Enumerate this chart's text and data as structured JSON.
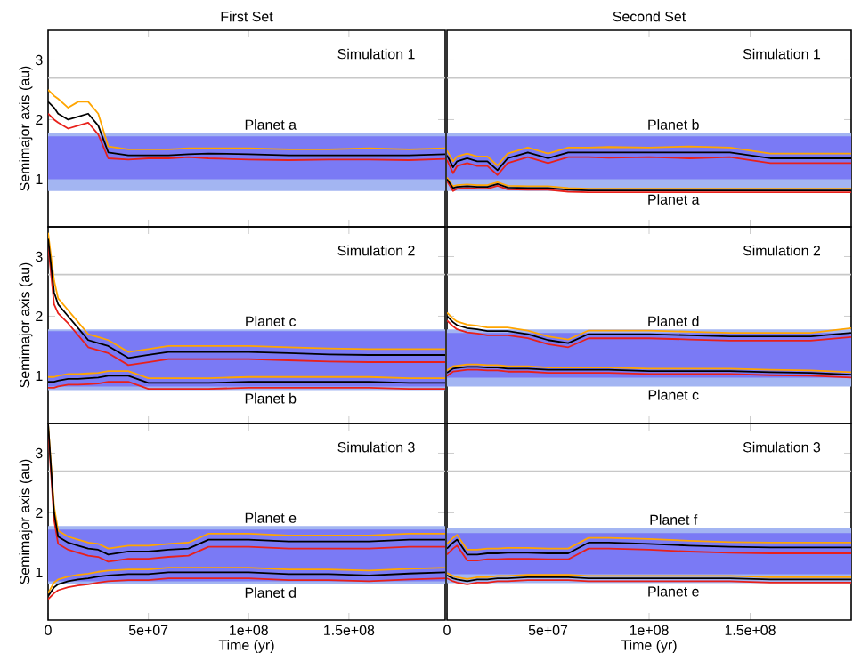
{
  "chart_data": [
    {
      "type": "line",
      "title": "First Set",
      "ylabel": "Semimajor axis (au)",
      "tick_labels": "y",
      "xlim": [
        0,
        198000000
      ],
      "ylim": [
        0.2,
        3.5
      ],
      "xticks": [
        {
          "value": 50000000,
          "label": null
        },
        {
          "value": 100000000,
          "label": null
        },
        {
          "value": 150000000,
          "label": null
        }
      ],
      "yticks": [
        1,
        2,
        3
      ],
      "bands": [
        {
          "axis": "y",
          "from": 0.8,
          "to": 1.78,
          "color": "#a3b5f2"
        },
        {
          "axis": "y",
          "from": 1.0,
          "to": 1.72,
          "color": "#7a7af5"
        }
      ],
      "ref_lines": [
        {
          "axis": "y",
          "value": 2.7,
          "color": "#c8c8c8"
        }
      ],
      "annotations": [
        "Simulation 1",
        "Planet a"
      ],
      "x": [
        0,
        3000000,
        5000000,
        10000000,
        15000000,
        20000000,
        25000000,
        30000000,
        40000000,
        50000000,
        60000000,
        70000000,
        80000000,
        100000000,
        120000000,
        140000000,
        160000000,
        180000000,
        198000000
      ],
      "series": [
        {
          "color": "#ffa500",
          "values": [
            2.5,
            2.4,
            2.35,
            2.2,
            2.3,
            2.3,
            2.1,
            1.55,
            1.5,
            1.5,
            1.5,
            1.52,
            1.52,
            1.52,
            1.5,
            1.5,
            1.52,
            1.5,
            1.52
          ]
        },
        {
          "color": "#e8201a",
          "values": [
            2.1,
            2.0,
            1.95,
            1.85,
            1.9,
            1.95,
            1.75,
            1.35,
            1.33,
            1.35,
            1.35,
            1.37,
            1.35,
            1.33,
            1.32,
            1.33,
            1.33,
            1.32,
            1.34
          ]
        },
        {
          "color": "#000000",
          "values": [
            2.3,
            2.2,
            2.1,
            2.0,
            2.05,
            2.1,
            1.9,
            1.45,
            1.4,
            1.4,
            1.4,
            1.42,
            1.43,
            1.42,
            1.4,
            1.4,
            1.4,
            1.4,
            1.42
          ]
        }
      ]
    },
    {
      "type": "line",
      "title": "Second Set",
      "tick_labels": false,
      "xlim": [
        0,
        200000000
      ],
      "ylim": [
        0.2,
        3.5
      ],
      "xticks": [
        {
          "value": 50000000,
          "label": null
        },
        {
          "value": 100000000,
          "label": null
        },
        {
          "value": 150000000,
          "label": null
        }
      ],
      "yticks": [
        {
          "value": 1,
          "label": null
        },
        {
          "value": 2,
          "label": null
        },
        {
          "value": 3,
          "label": null
        }
      ],
      "bands": [
        {
          "axis": "y",
          "from": 0.8,
          "to": 1.78,
          "color": "#a3b5f2"
        },
        {
          "axis": "y",
          "from": 1.0,
          "to": 1.72,
          "color": "#7a7af5"
        }
      ],
      "ref_lines": [
        {
          "axis": "y",
          "value": 2.7,
          "color": "#c8c8c8"
        }
      ],
      "annotations": [
        "Simulation 1",
        "Planet b",
        "Planet a"
      ],
      "x": [
        0,
        3000000,
        5000000,
        10000000,
        15000000,
        20000000,
        25000000,
        30000000,
        40000000,
        50000000,
        60000000,
        70000000,
        80000000,
        100000000,
        120000000,
        140000000,
        160000000,
        180000000,
        200000000
      ],
      "series": [
        {
          "color": "#ffa500",
          "values": [
            1.48,
            1.3,
            1.38,
            1.43,
            1.38,
            1.38,
            1.23,
            1.43,
            1.53,
            1.43,
            1.53,
            1.53,
            1.54,
            1.53,
            1.55,
            1.53,
            1.43,
            1.43,
            1.43
          ]
        },
        {
          "color": "#e8201a",
          "values": [
            1.32,
            1.1,
            1.22,
            1.27,
            1.22,
            1.22,
            1.07,
            1.27,
            1.37,
            1.27,
            1.37,
            1.37,
            1.36,
            1.37,
            1.35,
            1.37,
            1.27,
            1.27,
            1.27
          ]
        },
        {
          "color": "#000000",
          "values": [
            1.4,
            1.2,
            1.3,
            1.35,
            1.3,
            1.3,
            1.15,
            1.35,
            1.45,
            1.35,
            1.45,
            1.45,
            1.45,
            1.45,
            1.45,
            1.45,
            1.35,
            1.35,
            1.35
          ]
        },
        {
          "color": "#ffa500",
          "values": [
            1.03,
            0.88,
            0.9,
            0.91,
            0.9,
            0.9,
            0.95,
            0.89,
            0.88,
            0.88,
            0.85,
            0.84,
            0.84,
            0.84,
            0.84,
            0.84,
            0.84,
            0.84,
            0.84
          ]
        },
        {
          "color": "#e8201a",
          "values": [
            0.97,
            0.8,
            0.84,
            0.85,
            0.84,
            0.84,
            0.89,
            0.83,
            0.82,
            0.82,
            0.79,
            0.78,
            0.78,
            0.78,
            0.78,
            0.78,
            0.78,
            0.78,
            0.78
          ]
        },
        {
          "color": "#000000",
          "values": [
            1.0,
            0.85,
            0.87,
            0.88,
            0.87,
            0.87,
            0.92,
            0.86,
            0.85,
            0.85,
            0.82,
            0.81,
            0.81,
            0.81,
            0.81,
            0.81,
            0.81,
            0.81,
            0.81
          ]
        }
      ]
    },
    {
      "type": "line",
      "ylabel": "Semimajor axis (au)",
      "tick_labels": "y",
      "xlim": [
        0,
        198000000
      ],
      "ylim": [
        0.2,
        3.5
      ],
      "xticks": [
        {
          "value": 50000000,
          "label": null
        },
        {
          "value": 100000000,
          "label": null
        },
        {
          "value": 150000000,
          "label": null
        }
      ],
      "yticks": [
        1,
        2,
        3
      ],
      "bands": [
        {
          "axis": "y",
          "from": 0.76,
          "to": 1.78,
          "color": "#a3b5f2"
        },
        {
          "axis": "y",
          "from": 0.82,
          "to": 1.75,
          "color": "#7a7af5"
        }
      ],
      "ref_lines": [
        {
          "axis": "y",
          "value": 2.7,
          "color": "#c8c8c8"
        }
      ],
      "annotations": [
        "Simulation 2",
        "Planet c",
        "Planet b"
      ],
      "x": [
        0,
        3000000,
        5000000,
        10000000,
        15000000,
        20000000,
        25000000,
        30000000,
        40000000,
        50000000,
        60000000,
        70000000,
        80000000,
        100000000,
        120000000,
        140000000,
        160000000,
        180000000,
        198000000
      ],
      "series": [
        {
          "color": "#ffa500",
          "values": [
            3.4,
            2.6,
            2.3,
            2.1,
            1.9,
            1.7,
            1.65,
            1.6,
            1.4,
            1.45,
            1.5,
            1.5,
            1.5,
            1.5,
            1.48,
            1.46,
            1.45,
            1.45,
            1.45
          ]
        },
        {
          "color": "#e8201a",
          "values": [
            3.2,
            2.2,
            2.05,
            1.88,
            1.68,
            1.48,
            1.43,
            1.38,
            1.18,
            1.23,
            1.28,
            1.28,
            1.28,
            1.28,
            1.26,
            1.24,
            1.23,
            1.23,
            1.23
          ]
        },
        {
          "color": "#000000",
          "values": [
            3.3,
            2.4,
            2.2,
            2.0,
            1.8,
            1.6,
            1.55,
            1.5,
            1.3,
            1.35,
            1.4,
            1.4,
            1.4,
            1.4,
            1.38,
            1.36,
            1.35,
            1.35,
            1.35
          ]
        },
        {
          "color": "#ffa500",
          "values": [
            0.98,
            0.98,
            1.0,
            1.03,
            1.03,
            1.04,
            1.05,
            1.08,
            1.08,
            0.96,
            0.96,
            0.96,
            0.96,
            0.98,
            0.98,
            0.98,
            0.98,
            0.96,
            0.96
          ]
        },
        {
          "color": "#e8201a",
          "values": [
            0.8,
            0.8,
            0.82,
            0.85,
            0.85,
            0.86,
            0.87,
            0.9,
            0.9,
            0.78,
            0.78,
            0.78,
            0.78,
            0.8,
            0.8,
            0.8,
            0.8,
            0.78,
            0.78
          ]
        },
        {
          "color": "#000000",
          "values": [
            0.9,
            0.9,
            0.92,
            0.95,
            0.95,
            0.96,
            0.97,
            1.0,
            1.0,
            0.88,
            0.88,
            0.88,
            0.88,
            0.9,
            0.9,
            0.9,
            0.9,
            0.88,
            0.88
          ]
        }
      ]
    },
    {
      "type": "line",
      "tick_labels": false,
      "xlim": [
        0,
        200000000
      ],
      "ylim": [
        0.2,
        3.5
      ],
      "xticks": [
        {
          "value": 50000000,
          "label": null
        },
        {
          "value": 100000000,
          "label": null
        },
        {
          "value": 150000000,
          "label": null
        }
      ],
      "yticks": [
        {
          "value": 1,
          "label": null
        },
        {
          "value": 2,
          "label": null
        },
        {
          "value": 3,
          "label": null
        }
      ],
      "bands": [
        {
          "axis": "y",
          "from": 0.82,
          "to": 1.78,
          "color": "#a3b5f2"
        },
        {
          "axis": "y",
          "from": 0.97,
          "to": 1.72,
          "color": "#7a7af5"
        }
      ],
      "ref_lines": [
        {
          "axis": "y",
          "value": 2.7,
          "color": "#c8c8c8"
        }
      ],
      "annotations": [
        "Simulation 2",
        "Planet d",
        "Planet c"
      ],
      "x": [
        0,
        3000000,
        5000000,
        10000000,
        15000000,
        20000000,
        25000000,
        30000000,
        40000000,
        50000000,
        60000000,
        70000000,
        80000000,
        100000000,
        120000000,
        140000000,
        160000000,
        180000000,
        200000000
      ],
      "series": [
        {
          "color": "#ffa500",
          "values": [
            2.06,
            1.96,
            1.91,
            1.86,
            1.84,
            1.81,
            1.81,
            1.81,
            1.76,
            1.66,
            1.61,
            1.76,
            1.76,
            1.76,
            1.74,
            1.72,
            1.72,
            1.72,
            1.8
          ]
        },
        {
          "color": "#e8201a",
          "values": [
            1.93,
            1.83,
            1.78,
            1.73,
            1.71,
            1.68,
            1.68,
            1.68,
            1.63,
            1.53,
            1.48,
            1.63,
            1.63,
            1.63,
            1.61,
            1.59,
            1.59,
            1.59,
            1.65
          ]
        },
        {
          "color": "#000000",
          "values": [
            2.0,
            1.9,
            1.85,
            1.8,
            1.78,
            1.75,
            1.75,
            1.75,
            1.7,
            1.6,
            1.55,
            1.7,
            1.7,
            1.7,
            1.68,
            1.66,
            1.66,
            1.66,
            1.72
          ]
        },
        {
          "color": "#ffa500",
          "values": [
            1.09,
            1.16,
            1.17,
            1.19,
            1.19,
            1.18,
            1.18,
            1.16,
            1.16,
            1.14,
            1.14,
            1.14,
            1.14,
            1.12,
            1.12,
            1.12,
            1.1,
            1.09,
            1.06
          ]
        },
        {
          "color": "#e8201a",
          "values": [
            1.0,
            1.07,
            1.08,
            1.1,
            1.1,
            1.09,
            1.09,
            1.07,
            1.07,
            1.05,
            1.05,
            1.05,
            1.05,
            1.03,
            1.03,
            1.03,
            1.01,
            1.0,
            0.97
          ]
        },
        {
          "color": "#000000",
          "values": [
            1.05,
            1.12,
            1.13,
            1.15,
            1.15,
            1.14,
            1.14,
            1.12,
            1.12,
            1.1,
            1.1,
            1.1,
            1.1,
            1.08,
            1.08,
            1.08,
            1.06,
            1.05,
            1.02
          ]
        }
      ]
    },
    {
      "type": "line",
      "xlabel": "Time (yr)",
      "ylabel": "Semimajor axis (au)",
      "xlim": [
        0,
        198000000
      ],
      "ylim": [
        0.2,
        3.5
      ],
      "xticks": [
        0,
        {
          "value": 50000000,
          "label": "5e+07"
        },
        {
          "value": 100000000,
          "label": "1e+08"
        },
        {
          "value": 150000000,
          "label": "1.5e+08"
        }
      ],
      "yticks": [
        1,
        2,
        3
      ],
      "bands": [
        {
          "axis": "y",
          "from": 0.8,
          "to": 1.78,
          "color": "#a3b5f2"
        },
        {
          "axis": "y",
          "from": 0.85,
          "to": 1.72,
          "color": "#7a7af5"
        }
      ],
      "ref_lines": [
        {
          "axis": "y",
          "value": 2.7,
          "color": "#c8c8c8"
        }
      ],
      "annotations": [
        "Simulation 3",
        "Planet e",
        "Planet d"
      ],
      "x": [
        0,
        3000000,
        5000000,
        10000000,
        15000000,
        20000000,
        25000000,
        30000000,
        40000000,
        50000000,
        60000000,
        70000000,
        80000000,
        100000000,
        120000000,
        140000000,
        160000000,
        180000000,
        198000000
      ],
      "series": [
        {
          "color": "#ffa500",
          "values": [
            3.5,
            2.1,
            1.7,
            1.6,
            1.55,
            1.5,
            1.48,
            1.4,
            1.45,
            1.45,
            1.48,
            1.5,
            1.65,
            1.65,
            1.62,
            1.62,
            1.62,
            1.65,
            1.65
          ]
        },
        {
          "color": "#e8201a",
          "values": [
            3.4,
            1.88,
            1.48,
            1.38,
            1.33,
            1.28,
            1.26,
            1.18,
            1.23,
            1.23,
            1.26,
            1.28,
            1.43,
            1.43,
            1.4,
            1.4,
            1.4,
            1.43,
            1.43
          ]
        },
        {
          "color": "#000000",
          "values": [
            3.5,
            2.0,
            1.6,
            1.5,
            1.45,
            1.4,
            1.38,
            1.3,
            1.35,
            1.35,
            1.38,
            1.4,
            1.55,
            1.55,
            1.52,
            1.52,
            1.52,
            1.55,
            1.55
          ]
        },
        {
          "color": "#ffa500",
          "values": [
            0.65,
            0.83,
            0.88,
            0.93,
            0.96,
            0.98,
            1.01,
            1.03,
            1.05,
            1.05,
            1.08,
            1.08,
            1.08,
            1.08,
            1.05,
            1.05,
            1.03,
            1.06,
            1.08
          ]
        },
        {
          "color": "#e8201a",
          "values": [
            0.55,
            0.65,
            0.7,
            0.75,
            0.78,
            0.8,
            0.83,
            0.85,
            0.87,
            0.87,
            0.9,
            0.9,
            0.9,
            0.9,
            0.87,
            0.87,
            0.85,
            0.88,
            0.9
          ]
        },
        {
          "color": "#000000",
          "values": [
            0.6,
            0.75,
            0.8,
            0.85,
            0.88,
            0.9,
            0.93,
            0.95,
            0.97,
            0.97,
            1.0,
            1.0,
            1.0,
            1.0,
            0.97,
            0.97,
            0.95,
            0.98,
            1.0
          ]
        }
      ]
    },
    {
      "type": "line",
      "xlabel": "Time (yr)",
      "tick_labels": "x",
      "xlim": [
        0,
        200000000
      ],
      "ylim": [
        0.2,
        3.5
      ],
      "xticks": [
        0,
        {
          "value": 50000000,
          "label": "5e+07"
        },
        {
          "value": 100000000,
          "label": "1e+08"
        },
        {
          "value": 150000000,
          "label": "1.5e+08"
        }
      ],
      "yticks": [
        {
          "value": 1,
          "label": null
        },
        {
          "value": 2,
          "label": null
        },
        {
          "value": 3,
          "label": null
        }
      ],
      "bands": [
        {
          "axis": "y",
          "from": 0.82,
          "to": 1.75,
          "color": "#a3b5f2"
        },
        {
          "axis": "y",
          "from": 0.97,
          "to": 1.66,
          "color": "#7a7af5"
        }
      ],
      "ref_lines": [
        {
          "axis": "y",
          "value": 2.7,
          "color": "#c8c8c8"
        }
      ],
      "annotations": [
        "Simulation 3",
        "Planet f",
        "Planet e"
      ],
      "x": [
        0,
        3000000,
        5000000,
        10000000,
        15000000,
        20000000,
        25000000,
        30000000,
        40000000,
        50000000,
        60000000,
        70000000,
        80000000,
        100000000,
        120000000,
        140000000,
        160000000,
        180000000,
        200000000
      ],
      "series": [
        {
          "color": "#ffa500",
          "values": [
            1.48,
            1.58,
            1.63,
            1.38,
            1.38,
            1.4,
            1.4,
            1.41,
            1.41,
            1.4,
            1.4,
            1.58,
            1.58,
            1.56,
            1.53,
            1.51,
            1.5,
            1.5,
            1.5
          ]
        },
        {
          "color": "#e8201a",
          "values": [
            1.3,
            1.4,
            1.45,
            1.2,
            1.2,
            1.22,
            1.22,
            1.23,
            1.23,
            1.22,
            1.22,
            1.4,
            1.4,
            1.38,
            1.35,
            1.33,
            1.32,
            1.32,
            1.32
          ]
        },
        {
          "color": "#000000",
          "values": [
            1.4,
            1.5,
            1.55,
            1.3,
            1.3,
            1.32,
            1.32,
            1.33,
            1.33,
            1.32,
            1.32,
            1.5,
            1.5,
            1.48,
            1.45,
            1.43,
            1.42,
            1.42,
            1.42
          ]
        },
        {
          "color": "#ffa500",
          "values": [
            0.99,
            0.94,
            0.92,
            0.89,
            0.92,
            0.92,
            0.94,
            0.94,
            0.96,
            0.96,
            0.96,
            0.94,
            0.94,
            0.94,
            0.94,
            0.94,
            0.92,
            0.92,
            0.92
          ]
        },
        {
          "color": "#e8201a",
          "values": [
            0.9,
            0.85,
            0.83,
            0.8,
            0.83,
            0.83,
            0.85,
            0.85,
            0.87,
            0.87,
            0.87,
            0.85,
            0.85,
            0.85,
            0.85,
            0.85,
            0.83,
            0.83,
            0.83
          ]
        },
        {
          "color": "#000000",
          "values": [
            0.95,
            0.9,
            0.88,
            0.85,
            0.88,
            0.88,
            0.9,
            0.9,
            0.92,
            0.92,
            0.92,
            0.9,
            0.9,
            0.9,
            0.9,
            0.9,
            0.88,
            0.88,
            0.88
          ]
        }
      ]
    }
  ]
}
